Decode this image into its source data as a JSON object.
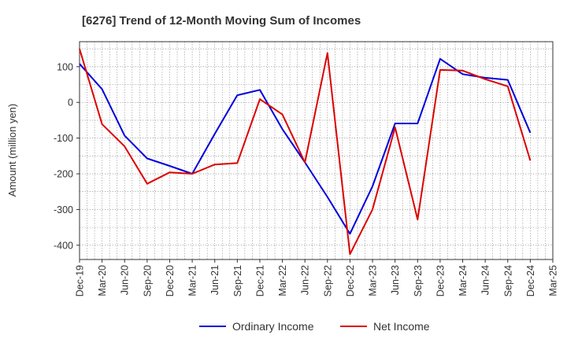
{
  "chart_data": {
    "type": "line",
    "title": "[6276]  Trend of 12-Month Moving Sum of Incomes",
    "xlabel": "",
    "ylabel": "Amount (million yen)",
    "ylim": [
      -440,
      170
    ],
    "yticks": [
      100,
      0,
      -100,
      -200,
      -300,
      -400
    ],
    "grid": true,
    "legend_position": "bottom-center",
    "categories": [
      "Dec-19",
      "Mar-20",
      "Jun-20",
      "Sep-20",
      "Dec-20",
      "Mar-21",
      "Jun-21",
      "Sep-21",
      "Dec-21",
      "Mar-22",
      "Jun-22",
      "Sep-22",
      "Dec-22",
      "Mar-23",
      "Jun-23",
      "Sep-23",
      "Dec-23",
      "Mar-24",
      "Jun-24",
      "Sep-24",
      "Dec-24",
      "Mar-25"
    ],
    "series": [
      {
        "name": "Ordinary Income",
        "color": "#0000dd",
        "values": [
          108,
          37,
          -93,
          -157,
          -178,
          -200,
          -88,
          20,
          35,
          -75,
          -168,
          -265,
          -368,
          -235,
          -59,
          -59,
          122,
          79,
          69,
          63,
          -85,
          null
        ]
      },
      {
        "name": "Net Income",
        "color": "#dd0000",
        "values": [
          150,
          -61,
          -123,
          -228,
          -196,
          -200,
          -174,
          -170,
          9,
          -34,
          -168,
          138,
          -425,
          -300,
          -70,
          -328,
          91,
          89,
          65,
          45,
          -163,
          null
        ]
      }
    ]
  }
}
